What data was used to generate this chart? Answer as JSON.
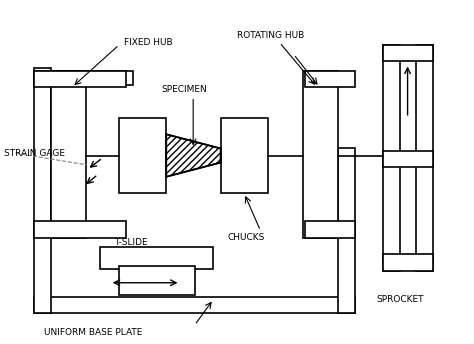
{
  "fig_width": 4.74,
  "fig_height": 3.44,
  "dpi": 100,
  "bg_color": "#f0f0f0",
  "line_color": "black",
  "labels": {
    "strain_gage": "STRAIN GAGE",
    "fixed_hub": "FIXED HUB",
    "rotating_hub": "ROTATING HUB",
    "specimen": "SPECIMEN",
    "t_slide": "T-SLIDE",
    "chucks": "CHUCKS",
    "base_plate": "UNIFORM BASE PLATE",
    "sprocket": "SPROCKET"
  }
}
